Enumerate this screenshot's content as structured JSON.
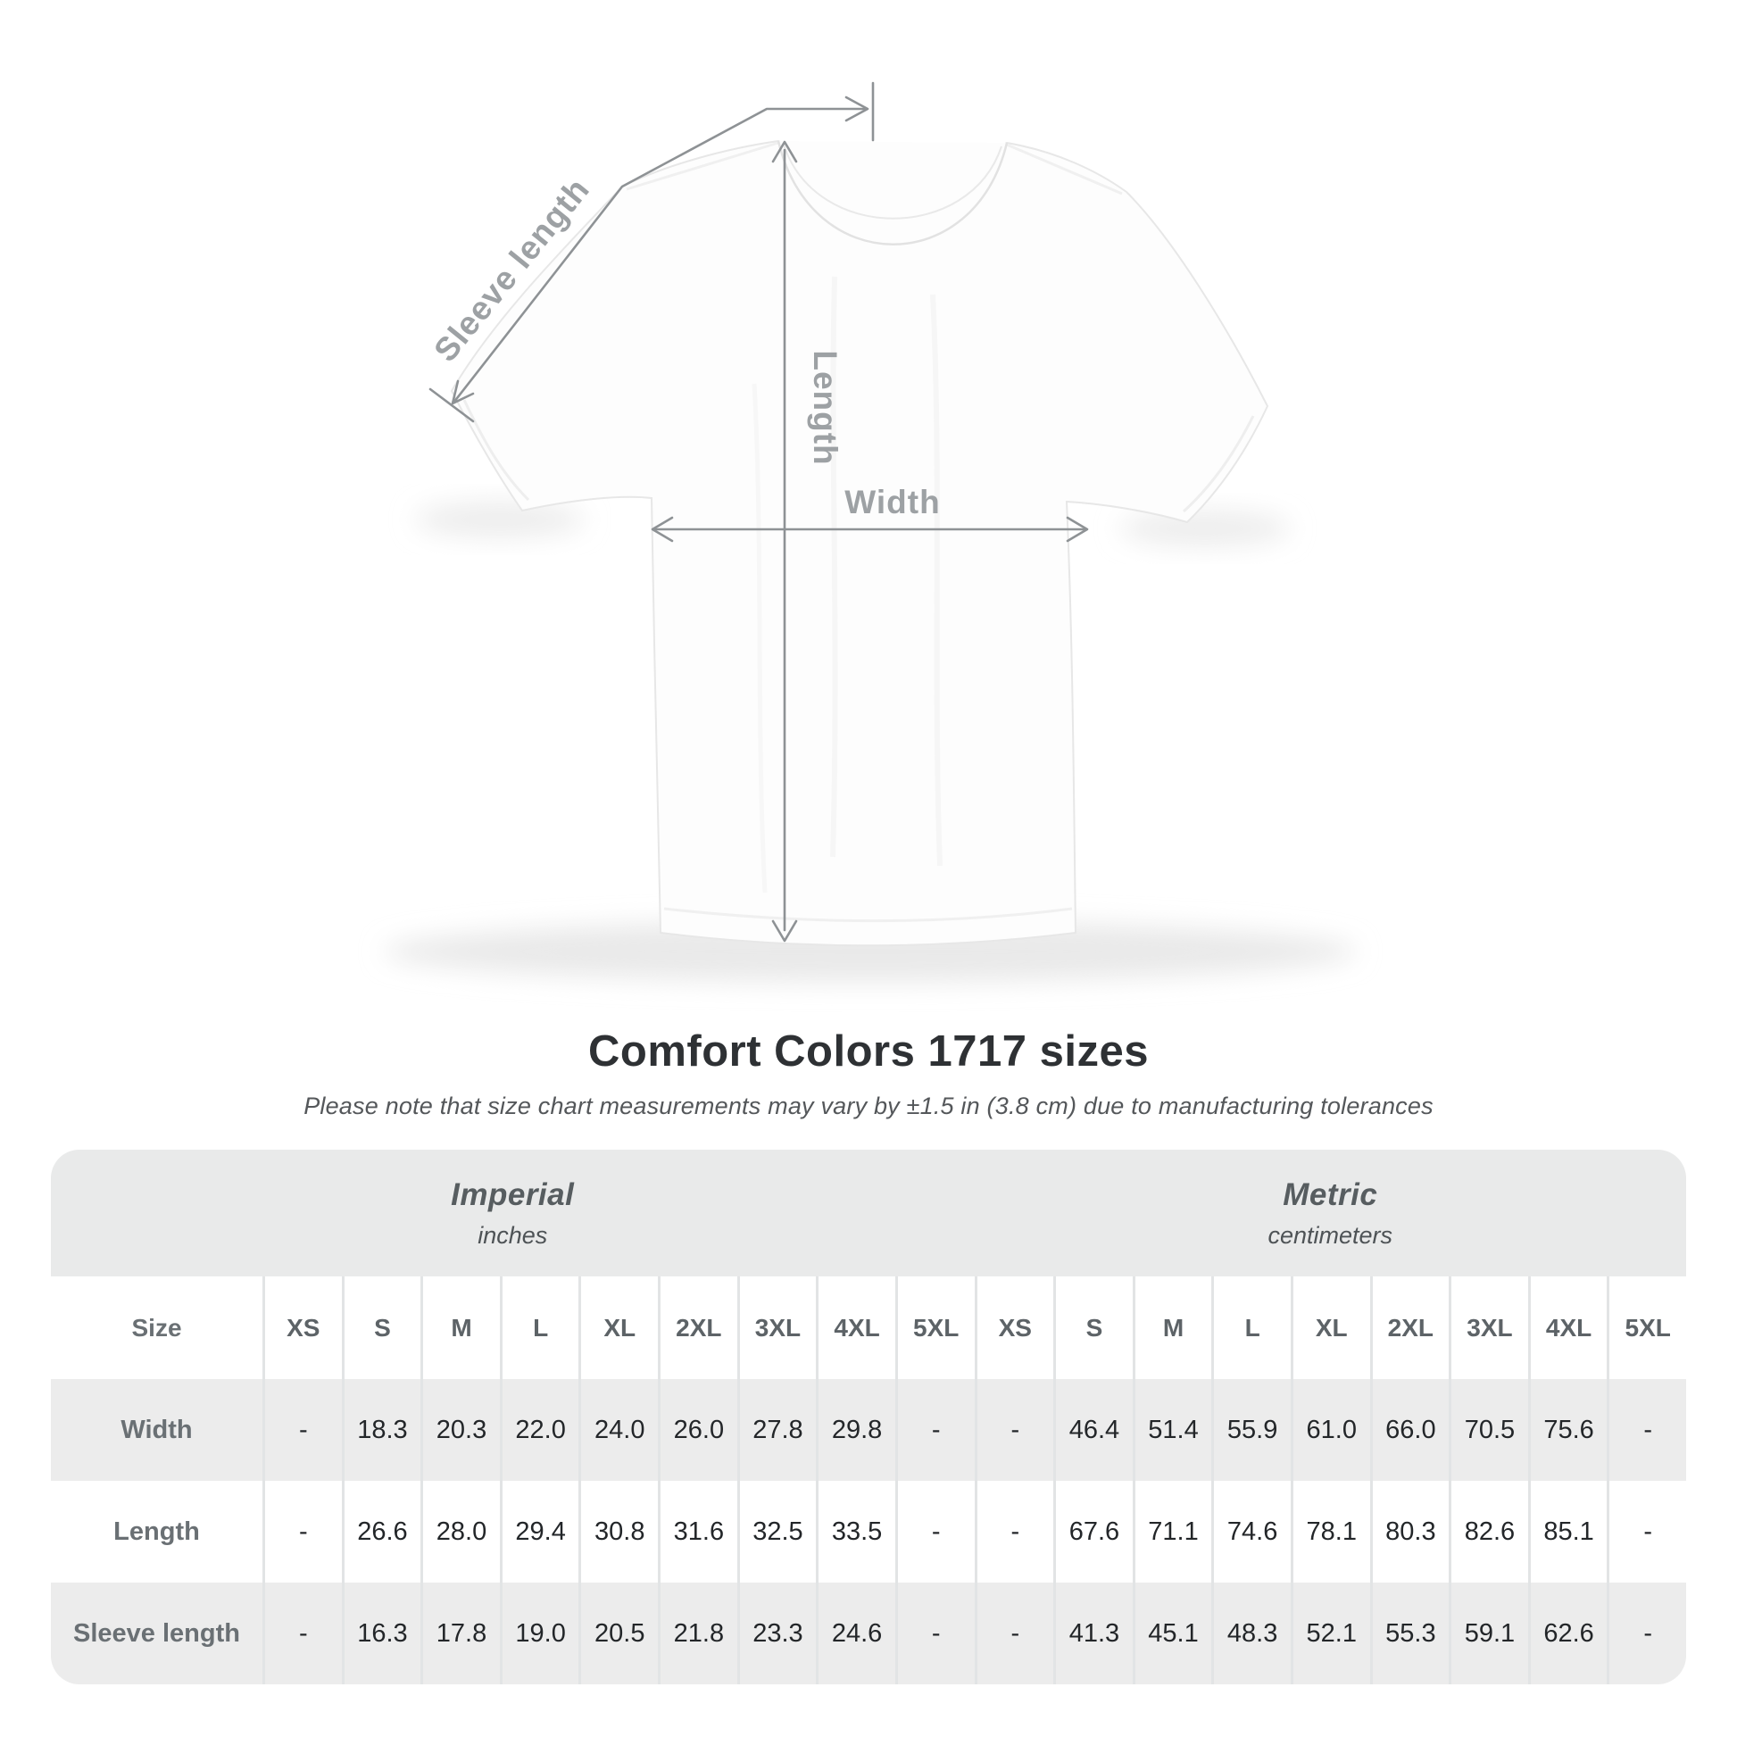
{
  "title": "Comfort Colors 1717 sizes",
  "subtitle": "Please note that size chart measurements may vary by ±1.5 in (3.8 cm) due to manufacturing tolerances",
  "diagram": {
    "sleeve_label": "Sleeve length",
    "length_label": "Length",
    "width_label": "Width",
    "line_color": "#8e9295",
    "label_color": "#9da1a4"
  },
  "table": {
    "size_label": "Size",
    "sizes": [
      "XS",
      "S",
      "M",
      "L",
      "XL",
      "2XL",
      "3XL",
      "4XL",
      "5XL"
    ],
    "sections": [
      {
        "name": "Imperial",
        "unit": "inches"
      },
      {
        "name": "Metric",
        "unit": "centimeters"
      }
    ],
    "rows": [
      {
        "label": "Width",
        "imperial": [
          "-",
          "18.3",
          "20.3",
          "22.0",
          "24.0",
          "26.0",
          "27.8",
          "29.8",
          "-"
        ],
        "metric": [
          "-",
          "46.4",
          "51.4",
          "55.9",
          "61.0",
          "66.0",
          "70.5",
          "75.6",
          "-"
        ]
      },
      {
        "label": "Length",
        "imperial": [
          "-",
          "26.6",
          "28.0",
          "29.4",
          "30.8",
          "31.6",
          "32.5",
          "33.5",
          "-"
        ],
        "metric": [
          "-",
          "67.6",
          "71.1",
          "74.6",
          "78.1",
          "80.3",
          "82.6",
          "85.1",
          "-"
        ]
      },
      {
        "label": "Sleeve length",
        "imperial": [
          "-",
          "16.3",
          "17.8",
          "19.0",
          "20.5",
          "21.8",
          "23.3",
          "24.6",
          "-"
        ],
        "metric": [
          "-",
          "41.3",
          "45.1",
          "48.3",
          "52.1",
          "55.3",
          "59.1",
          "62.6",
          "-"
        ]
      }
    ]
  }
}
